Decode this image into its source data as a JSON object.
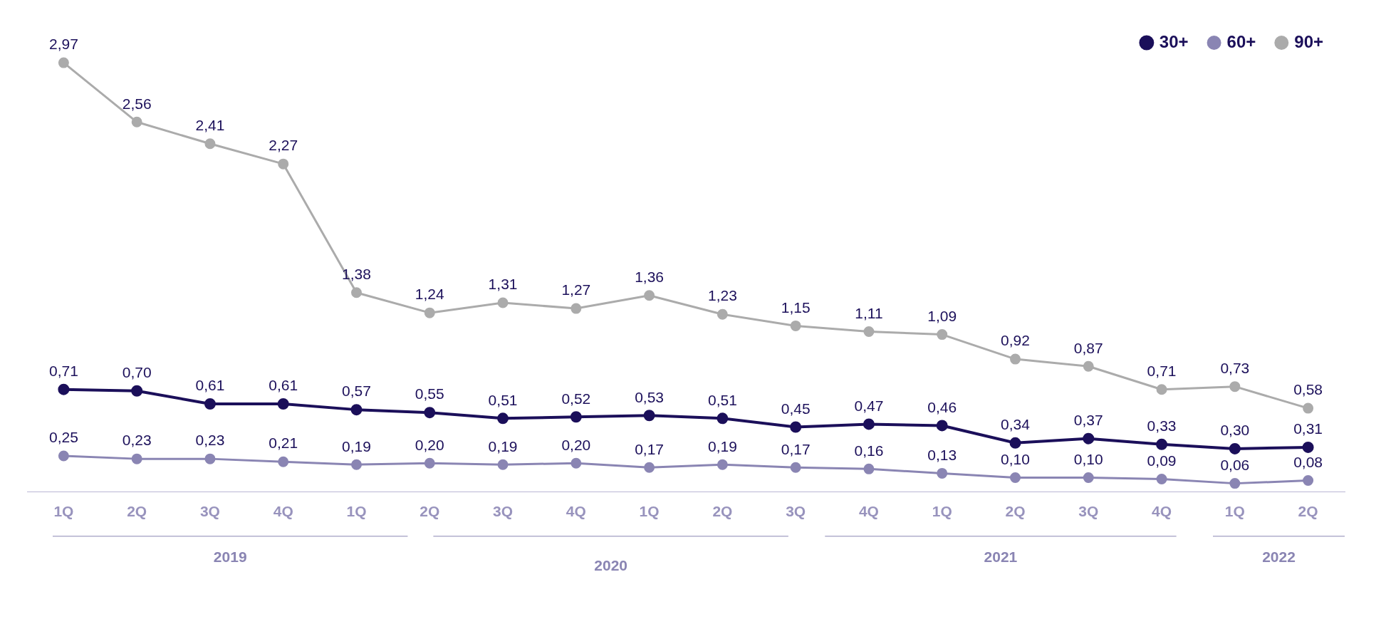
{
  "chart_data": {
    "type": "line",
    "categories": [
      "1Q",
      "2Q",
      "3Q",
      "4Q",
      "1Q",
      "2Q",
      "3Q",
      "4Q",
      "1Q",
      "2Q",
      "3Q",
      "4Q",
      "1Q",
      "2Q",
      "3Q",
      "4Q",
      "1Q",
      "2Q"
    ],
    "series": [
      {
        "name": "30+",
        "color": "#1b0f5a",
        "values": [
          0.71,
          0.7,
          0.61,
          0.61,
          0.57,
          0.55,
          0.51,
          0.52,
          0.53,
          0.51,
          0.45,
          0.47,
          0.46,
          0.34,
          0.37,
          0.33,
          0.3,
          0.31
        ],
        "value_labels": [
          "0,71",
          "0,70",
          "0,61",
          "0,61",
          "0,57",
          "0,55",
          "0,51",
          "0,52",
          "0,53",
          "0,51",
          "0,45",
          "0,47",
          "0,46",
          "0,34",
          "0,37",
          "0,33",
          "0,30",
          "0,31"
        ]
      },
      {
        "name": "60+",
        "color": "#8a85b3",
        "values": [
          0.25,
          0.23,
          0.23,
          0.21,
          0.19,
          0.2,
          0.19,
          0.2,
          0.17,
          0.19,
          0.17,
          0.16,
          0.13,
          0.1,
          0.1,
          0.09,
          0.06,
          0.08
        ],
        "value_labels": [
          "0,25",
          "0,23",
          "0,23",
          "0,21",
          "0,19",
          "0,20",
          "0,19",
          "0,20",
          "0,17",
          "0,19",
          "0,17",
          "0,16",
          "0,13",
          "0,10",
          "0,10",
          "0,09",
          "0,06",
          "0,08"
        ]
      },
      {
        "name": "90+",
        "color": "#ababab",
        "values": [
          2.97,
          2.56,
          2.41,
          2.27,
          1.38,
          1.24,
          1.31,
          1.27,
          1.36,
          1.23,
          1.15,
          1.11,
          1.09,
          0.92,
          0.87,
          0.71,
          0.73,
          0.58
        ],
        "value_labels": [
          "2,97",
          "2,56",
          "2,41",
          "2,27",
          "1,38",
          "1,24",
          "1,31",
          "1,27",
          "1,36",
          "1,23",
          "1,15",
          "1,11",
          "1,09",
          "0,92",
          "0,87",
          "0,71",
          "0,73",
          "0,58"
        ]
      }
    ],
    "annotations": [
      "2019",
      "2020",
      "2021",
      "2022"
    ],
    "tick_labels": "x",
    "grid": false,
    "legend": "top right",
    "marker": "circle",
    "line_style": "solid"
  }
}
